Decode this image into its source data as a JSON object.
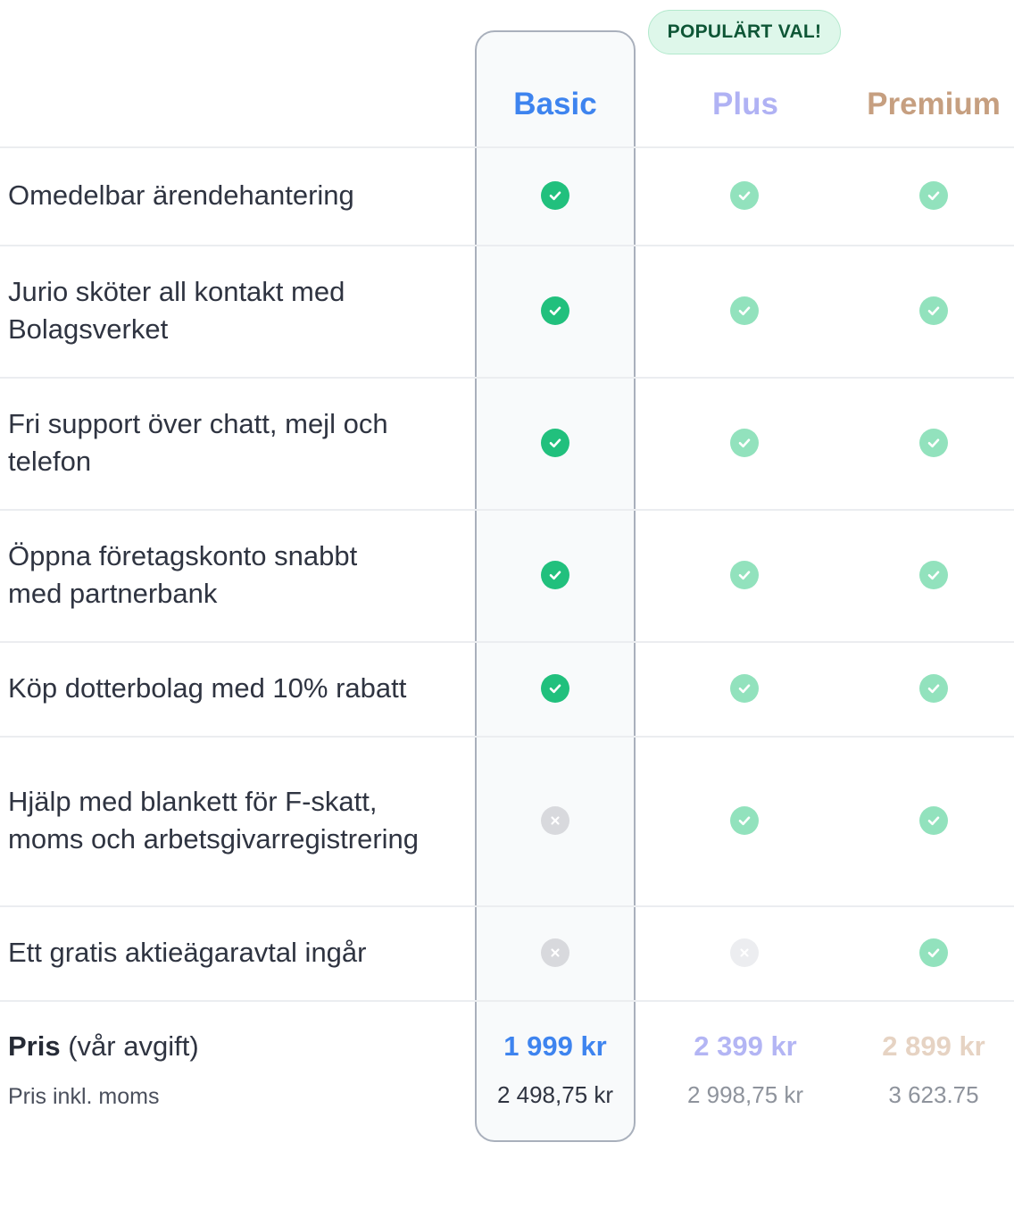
{
  "badge": "POPULÄRT VAL!",
  "plans": [
    {
      "name": "Basic",
      "color": "#3e84ef",
      "price": "1 999 kr",
      "price_color": "#3e84ef",
      "price_incl": "2 498,75 kr",
      "incl_color": "#2f3441"
    },
    {
      "name": "Plus",
      "color": "#b0b2f4",
      "price": "2 399 kr",
      "price_color": "#b3b5f4",
      "price_incl": "2 998,75 kr",
      "incl_color": "#8e939c"
    },
    {
      "name": "Premium",
      "color": "#c69f80",
      "price": "2 899 kr",
      "price_color": "#e6d3c3",
      "price_incl": "3 623.75",
      "incl_color": "#8e939c"
    }
  ],
  "features": [
    {
      "label": "Omedelbar ärendehantering",
      "marks": [
        "check",
        "check-light",
        "check-light"
      ]
    },
    {
      "label": "Jurio sköter all kontakt med Bolagsverket",
      "marks": [
        "check",
        "check-light",
        "check-light"
      ]
    },
    {
      "label": "Fri support över chatt, mejl och telefon",
      "marks": [
        "check",
        "check-light",
        "check-light"
      ]
    },
    {
      "label": "Öppna företagskonto snabbt med partnerbank",
      "marks": [
        "check",
        "check-light",
        "check-light"
      ]
    },
    {
      "label": "Köp dotterbolag med 10% rabatt",
      "marks": [
        "check",
        "check-light",
        "check-light"
      ]
    },
    {
      "label": "Hjälp med blankett för F-skatt, moms och arbetsgivarregistrering",
      "marks": [
        "cross",
        "check-light",
        "check-light"
      ]
    },
    {
      "label": "Ett gratis aktieägaravtal ingår",
      "marks": [
        "cross",
        "cross-light",
        "check-light"
      ]
    }
  ],
  "price_row": {
    "label_bold": "Pris",
    "label_rest": " (vår avgift)",
    "sub_label": "Pris inkl. moms"
  },
  "colors": {
    "check": "#21c07d",
    "check_light": "#92e2bd",
    "cross": "#d8d9dd",
    "cross_light": "#ecedf0"
  },
  "icons": {
    "check": "check-circle-icon",
    "cross": "x-circle-icon"
  }
}
